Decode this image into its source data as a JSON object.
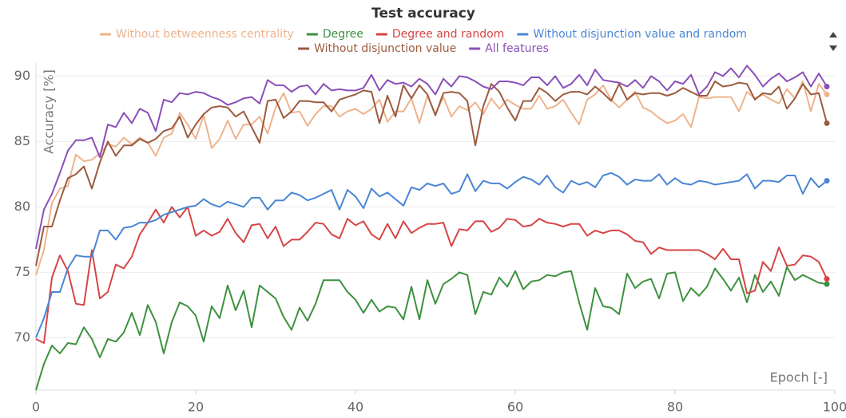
{
  "chart_data": {
    "type": "line",
    "title": "Test accuracy",
    "x_label": "Epoch [-]",
    "y_label": "Accuracy [%]",
    "x": [
      0,
      1,
      2,
      3,
      4,
      5,
      6,
      7,
      8,
      9,
      10,
      11,
      12,
      13,
      14,
      15,
      16,
      17,
      18,
      19,
      20,
      21,
      22,
      23,
      24,
      25,
      26,
      27,
      28,
      29,
      30,
      31,
      32,
      33,
      34,
      35,
      36,
      37,
      38,
      39,
      40,
      41,
      42,
      43,
      44,
      45,
      46,
      47,
      48,
      49,
      50,
      51,
      52,
      53,
      54,
      55,
      56,
      57,
      58,
      59,
      60,
      61,
      62,
      63,
      64,
      65,
      66,
      67,
      68,
      69,
      70,
      71,
      72,
      73,
      74,
      75,
      76,
      77,
      78,
      79,
      80,
      81,
      82,
      83,
      84,
      85,
      86,
      87,
      88,
      89,
      90,
      91,
      92,
      93,
      94,
      95,
      96,
      97,
      98,
      99
    ],
    "xlim": [
      0,
      100
    ],
    "xticks": [
      0,
      20,
      40,
      60,
      80,
      100
    ],
    "ylim": [
      66,
      91
    ],
    "yticks": [
      70,
      75,
      80,
      85,
      90
    ],
    "grid": true,
    "series": [
      {
        "name": "Without betweenness centrality",
        "color": "#efb38c",
        "values": [
          74.8,
          76.7,
          80.3,
          81.4,
          81.6,
          84.0,
          83.5,
          83.6,
          84.1,
          84.8,
          84.6,
          85.3,
          84.8,
          85.3,
          84.9,
          83.9,
          85.3,
          85.6,
          87.2,
          86.3,
          85.2,
          87.0,
          84.5,
          85.2,
          86.6,
          85.2,
          86.3,
          86.3,
          86.9,
          85.6,
          87.6,
          88.7,
          87.2,
          87.3,
          86.2,
          87.1,
          87.7,
          87.7,
          86.9,
          87.3,
          87.5,
          87.1,
          87.5,
          88.2,
          86.5,
          87.3,
          87.3,
          88.3,
          86.4,
          88.5,
          87.1,
          88.4,
          86.9,
          87.7,
          87.4,
          88.0,
          87.1,
          88.3,
          87.5,
          88.2,
          87.8,
          87.5,
          87.5,
          88.5,
          87.5,
          87.7,
          88.2,
          87.2,
          86.3,
          88.2,
          88.6,
          89.3,
          88.2,
          87.6,
          88.2,
          88.8,
          87.6,
          87.3,
          86.8,
          86.4,
          86.6,
          87.1,
          86.1,
          88.4,
          88.3,
          88.4,
          88.4,
          88.4,
          87.3,
          88.8,
          88.3,
          88.6,
          88.2,
          87.9,
          89.0,
          88.3,
          89.6,
          87.3,
          89.4,
          88.6
        ]
      },
      {
        "name": "Degree",
        "color": "#3d913f",
        "values": [
          66.0,
          68.0,
          69.4,
          68.8,
          69.6,
          69.5,
          70.8,
          69.9,
          68.5,
          69.9,
          69.7,
          70.4,
          71.9,
          70.2,
          72.5,
          71.2,
          68.8,
          71.2,
          72.7,
          72.4,
          71.7,
          69.7,
          72.4,
          71.5,
          74.0,
          72.1,
          73.6,
          70.8,
          74.0,
          73.5,
          73.0,
          71.6,
          70.6,
          72.3,
          71.3,
          72.6,
          74.4,
          74.4,
          74.4,
          73.5,
          72.9,
          71.9,
          72.9,
          72.0,
          72.4,
          72.3,
          71.4,
          73.9,
          71.4,
          74.4,
          72.6,
          74.1,
          74.5,
          75.0,
          74.8,
          71.8,
          73.5,
          73.3,
          74.6,
          73.9,
          75.1,
          73.7,
          74.3,
          74.4,
          74.8,
          74.7,
          75.0,
          75.1,
          72.7,
          70.6,
          73.8,
          72.4,
          72.3,
          71.8,
          74.9,
          73.8,
          74.3,
          74.5,
          73.0,
          74.9,
          75.0,
          72.8,
          73.8,
          73.2,
          73.9,
          75.3,
          74.5,
          73.6,
          74.6,
          72.7,
          74.8,
          73.5,
          74.3,
          73.2,
          75.4,
          74.4,
          74.8,
          74.5,
          74.2,
          74.1
        ]
      },
      {
        "name": "Degree and random",
        "color": "#d64545",
        "values": [
          69.9,
          69.6,
          74.6,
          76.3,
          75.1,
          72.6,
          72.5,
          76.7,
          73.0,
          73.5,
          75.6,
          75.3,
          76.2,
          77.9,
          78.8,
          79.8,
          78.8,
          80.0,
          79.2,
          80.0,
          77.8,
          78.2,
          77.8,
          78.1,
          79.1,
          78.0,
          77.3,
          78.6,
          78.7,
          77.6,
          78.5,
          77.0,
          77.5,
          77.5,
          78.1,
          78.8,
          78.7,
          77.9,
          77.6,
          79.1,
          78.6,
          78.9,
          77.9,
          77.5,
          78.7,
          77.6,
          78.9,
          78.0,
          78.4,
          78.7,
          78.7,
          78.8,
          77.0,
          78.3,
          78.2,
          78.9,
          78.9,
          78.1,
          78.4,
          79.1,
          79.0,
          78.5,
          78.6,
          79.1,
          78.8,
          78.7,
          78.5,
          78.7,
          78.7,
          77.8,
          78.2,
          78.0,
          78.2,
          78.2,
          77.9,
          77.4,
          77.3,
          76.4,
          76.9,
          76.7,
          76.7,
          76.7,
          76.7,
          76.7,
          76.4,
          76.0,
          76.8,
          76.0,
          76.0,
          73.4,
          73.6,
          75.8,
          75.1,
          76.9,
          75.5,
          75.6,
          76.3,
          76.2,
          75.8,
          74.5
        ]
      },
      {
        "name": "Without disjunction value and random",
        "color": "#4a86d4",
        "values": [
          70.0,
          71.5,
          73.5,
          73.5,
          75.3,
          76.3,
          76.2,
          76.2,
          78.2,
          78.2,
          77.5,
          78.4,
          78.5,
          78.8,
          78.8,
          79.0,
          79.4,
          79.6,
          79.8,
          80.0,
          80.1,
          80.6,
          80.2,
          80.0,
          80.4,
          80.2,
          80.0,
          80.7,
          80.7,
          79.8,
          80.5,
          80.5,
          81.1,
          80.9,
          80.5,
          80.7,
          81.0,
          81.3,
          79.8,
          81.3,
          80.8,
          79.9,
          81.4,
          80.8,
          81.1,
          80.6,
          80.1,
          81.5,
          81.3,
          81.8,
          81.6,
          81.8,
          81.0,
          81.2,
          82.5,
          81.2,
          82.0,
          81.8,
          81.8,
          81.4,
          81.9,
          82.3,
          82.1,
          81.7,
          82.4,
          81.5,
          81.1,
          82.0,
          81.7,
          81.9,
          81.5,
          82.4,
          82.6,
          82.3,
          81.7,
          82.1,
          82.0,
          82.0,
          82.5,
          81.7,
          82.2,
          81.8,
          81.7,
          82.0,
          81.9,
          81.7,
          81.8,
          81.9,
          82.0,
          82.5,
          81.4,
          82.0,
          82.0,
          81.9,
          82.4,
          82.4,
          81.0,
          82.2,
          81.5,
          82.0
        ]
      },
      {
        "name": "Without disjunction value",
        "color": "#9c5b3e",
        "values": [
          75.5,
          78.5,
          78.5,
          80.5,
          82.2,
          82.5,
          83.1,
          81.4,
          83.4,
          85.0,
          83.9,
          84.7,
          84.7,
          85.2,
          84.9,
          85.2,
          85.8,
          86.0,
          86.9,
          85.3,
          86.3,
          87.1,
          87.6,
          87.7,
          87.6,
          86.9,
          87.3,
          86.1,
          84.9,
          88.1,
          88.2,
          86.8,
          87.3,
          88.1,
          88.1,
          88.0,
          88.0,
          87.3,
          88.2,
          88.4,
          88.6,
          88.9,
          88.8,
          86.4,
          88.5,
          86.9,
          89.3,
          88.3,
          89.3,
          88.6,
          87.0,
          88.7,
          88.8,
          88.7,
          88.1,
          84.7,
          87.7,
          89.4,
          88.8,
          87.6,
          86.6,
          88.1,
          88.1,
          89.1,
          88.7,
          88.1,
          88.6,
          88.8,
          88.8,
          88.6,
          89.2,
          88.7,
          88.1,
          89.4,
          88.2,
          88.7,
          88.6,
          88.7,
          88.7,
          88.5,
          88.7,
          89.1,
          88.8,
          88.5,
          88.5,
          89.6,
          89.2,
          89.3,
          89.5,
          89.4,
          88.2,
          88.7,
          88.6,
          89.2,
          87.5,
          88.3,
          89.4,
          88.6,
          88.7,
          86.4
        ]
      },
      {
        "name": "All features",
        "color": "#8a4fb8",
        "values": [
          76.8,
          79.8,
          81.0,
          82.6,
          84.3,
          85.1,
          85.1,
          85.3,
          83.8,
          86.3,
          86.1,
          87.2,
          86.4,
          87.5,
          87.2,
          85.8,
          88.2,
          88.0,
          88.7,
          88.6,
          88.8,
          88.7,
          88.4,
          88.2,
          87.8,
          88.0,
          88.3,
          88.4,
          87.9,
          89.7,
          89.3,
          89.3,
          88.8,
          89.2,
          89.3,
          88.6,
          89.4,
          88.9,
          89.0,
          88.9,
          88.9,
          89.1,
          90.1,
          88.9,
          89.7,
          89.4,
          89.5,
          89.2,
          89.8,
          89.4,
          88.6,
          89.8,
          89.2,
          90.0,
          89.9,
          89.6,
          89.2,
          89.0,
          89.6,
          89.6,
          89.5,
          89.3,
          89.9,
          89.9,
          89.3,
          90.0,
          89.1,
          89.4,
          90.1,
          89.3,
          90.5,
          89.7,
          89.6,
          89.5,
          89.2,
          89.7,
          89.1,
          90.0,
          89.6,
          88.9,
          89.6,
          89.4,
          90.1,
          88.6,
          89.2,
          90.3,
          90.0,
          90.6,
          89.9,
          90.8,
          90.1,
          89.2,
          89.8,
          90.2,
          89.6,
          89.9,
          90.3,
          89.2,
          90.2,
          89.2
        ]
      }
    ]
  }
}
